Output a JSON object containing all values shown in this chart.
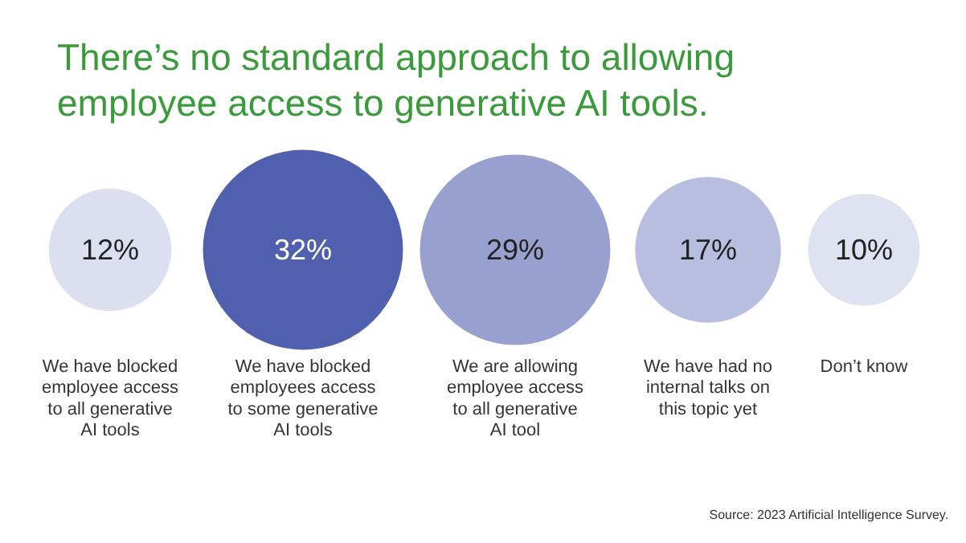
{
  "chart_data": {
    "type": "other",
    "title": "There’s no standard approach to allowing\nemployee access to generative AI tools.",
    "categories": [
      "We have blocked\nemployee access\nto all generative\nAI tools",
      "We have blocked\nemployees access\nto some generative\nAI tools",
      "We are allowing\nemployee access\nto all generative\nAI tool",
      "We have had no\ninternal talks on\nthis topic yet",
      "Don’t know"
    ],
    "values": [
      12,
      32,
      29,
      17,
      10
    ],
    "value_labels": [
      "12%",
      "32%",
      "29%",
      "17%",
      "10%"
    ],
    "colors": [
      "#dcdff0",
      "#5060ae",
      "#97a0cf",
      "#b8bee0",
      "#dfe2f0"
    ],
    "annotations": [
      "Source: 2023 Artificial Intelligence Survey."
    ]
  }
}
